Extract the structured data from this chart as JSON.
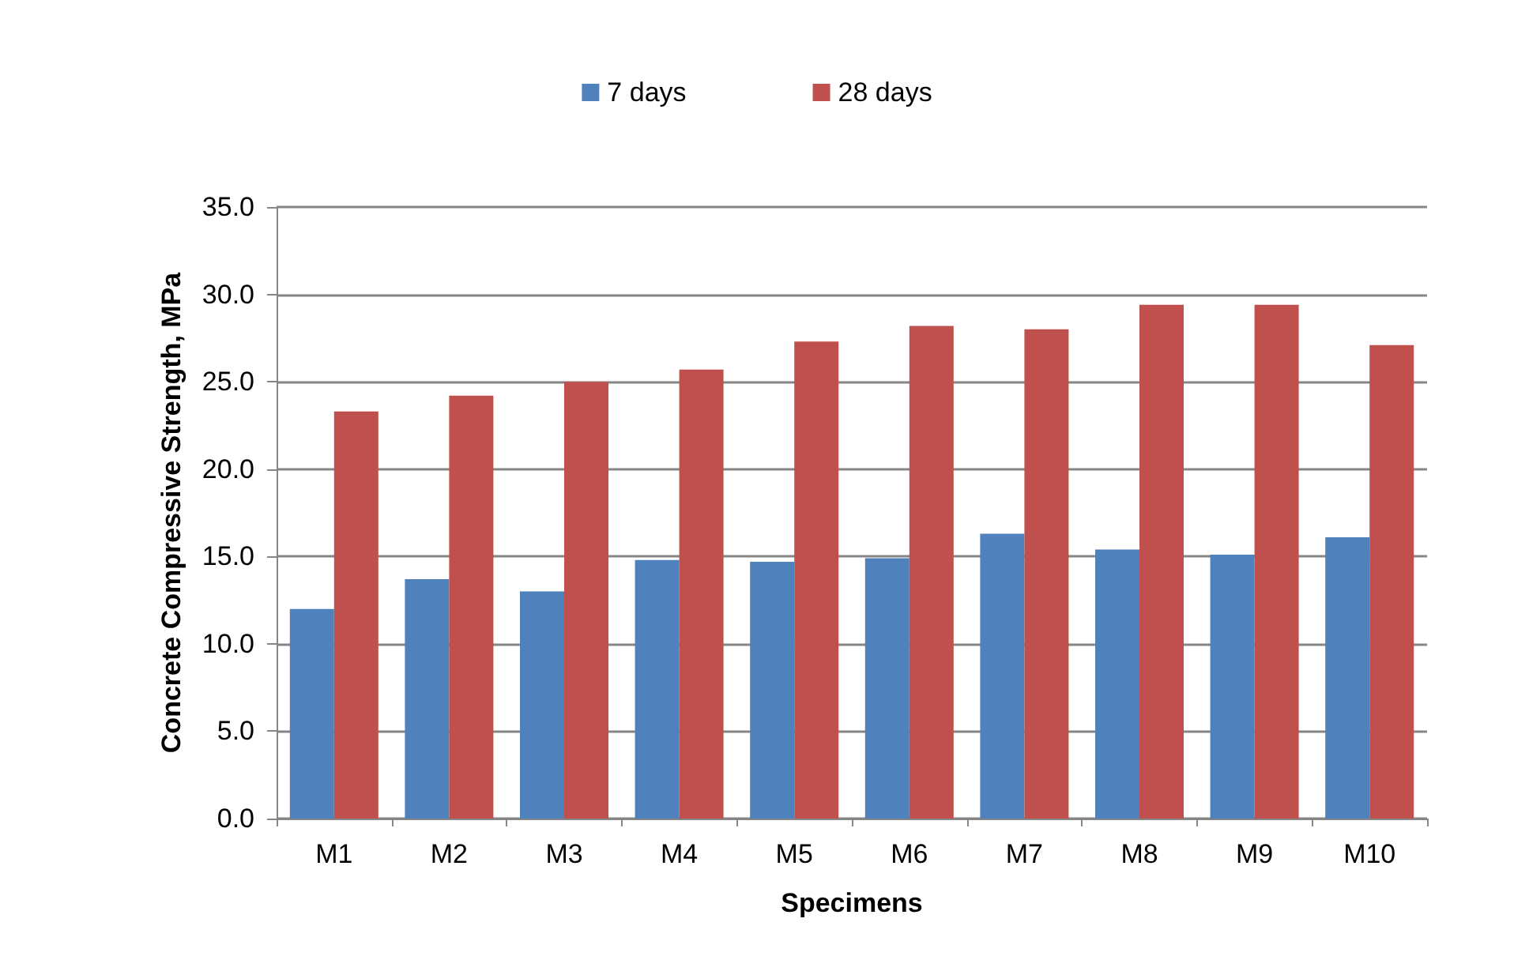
{
  "chart_data": {
    "type": "bar",
    "xlabel": "Specimens",
    "ylabel": "Concrete Compressive Strength, MPa",
    "categories": [
      "M1",
      "M2",
      "M3",
      "M4",
      "M5",
      "M6",
      "M7",
      "M8",
      "M9",
      "M10"
    ],
    "series": [
      {
        "name": "7 days",
        "color": "#4f81bd",
        "values": [
          12.0,
          13.7,
          13.0,
          14.8,
          14.7,
          14.9,
          16.3,
          15.4,
          15.1,
          16.1
        ]
      },
      {
        "name": "28 days",
        "color": "#c0504d",
        "values": [
          23.3,
          24.2,
          25.0,
          25.7,
          27.3,
          28.2,
          28.0,
          29.4,
          29.4,
          27.1
        ]
      }
    ],
    "ylim": [
      0,
      35
    ],
    "yticks": [
      {
        "value": 0,
        "label": "0.0"
      },
      {
        "value": 5,
        "label": "5.0"
      },
      {
        "value": 10,
        "label": "10.0"
      },
      {
        "value": 15,
        "label": "15.0"
      },
      {
        "value": 20,
        "label": "20.0"
      },
      {
        "value": 25,
        "label": "25.0"
      },
      {
        "value": 30,
        "label": "30.0"
      },
      {
        "value": 35,
        "label": "35.0"
      }
    ],
    "grid": "y",
    "legend": "top"
  }
}
